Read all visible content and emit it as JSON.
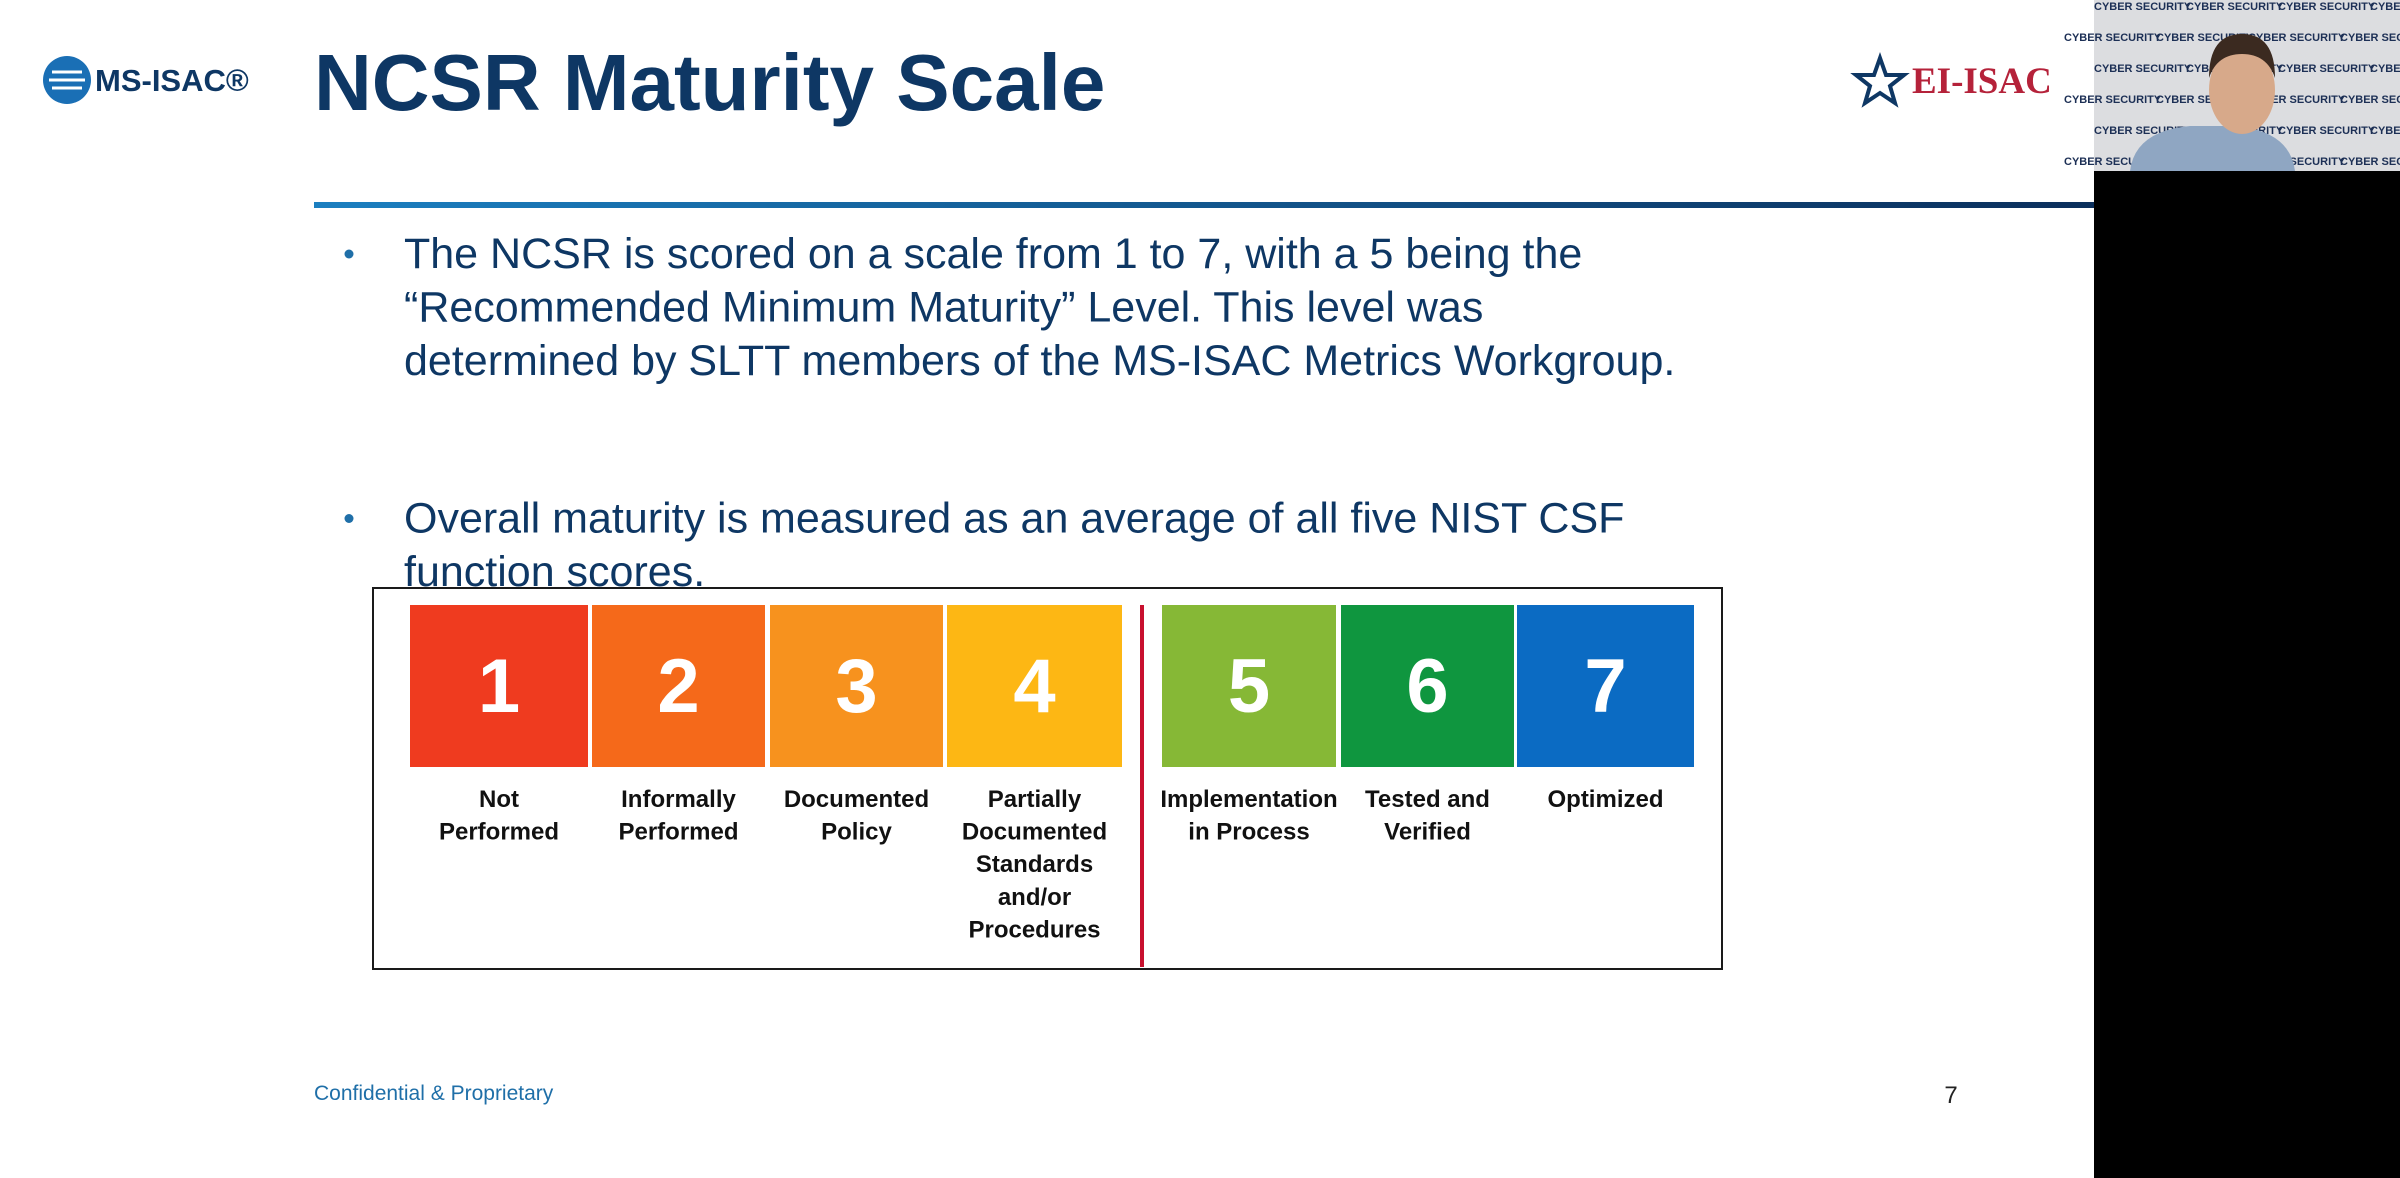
{
  "header": {
    "left_logo": "MS-ISAC®",
    "title": "NCSR Maturity Scale",
    "right_logo": "EI-ISAC"
  },
  "bullets": [
    [
      "The NCSR is scored on a scale from 1 to 7, with a 5 being the",
      "“Recommended Minimum Maturity” Level. This level was",
      "determined by SLTT members of the MS-ISAC Metrics Workgroup."
    ],
    [
      "Overall maturity is measured as an average of all five NIST CSF",
      "function scores."
    ]
  ],
  "scale": [
    {
      "number": 1,
      "color": "#ef3b1f",
      "lines": [
        "Not",
        "Performed"
      ]
    },
    {
      "number": 2,
      "color": "#f5691a",
      "lines": [
        "Informally",
        "Performed"
      ]
    },
    {
      "number": 3,
      "color": "#f7921e",
      "lines": [
        "Documented",
        "Policy"
      ]
    },
    {
      "number": 4,
      "color": "#fdb714",
      "lines": [
        "Partially",
        "Documented",
        "Standards",
        "and/or",
        "Procedures"
      ]
    },
    {
      "number": 5,
      "color": "#86b836",
      "lines": [
        "Implementation",
        "in Process"
      ]
    },
    {
      "number": 6,
      "color": "#0f963f",
      "lines": [
        "Tested and",
        "Verified"
      ]
    },
    {
      "number": 7,
      "color": "#0b6bc3",
      "lines": [
        "Optimized"
      ]
    }
  ],
  "footer": {
    "note": "Confidential & Proprietary",
    "page": "7"
  },
  "webcam": {
    "backdrop_text": "CYBER SECURITY"
  }
}
